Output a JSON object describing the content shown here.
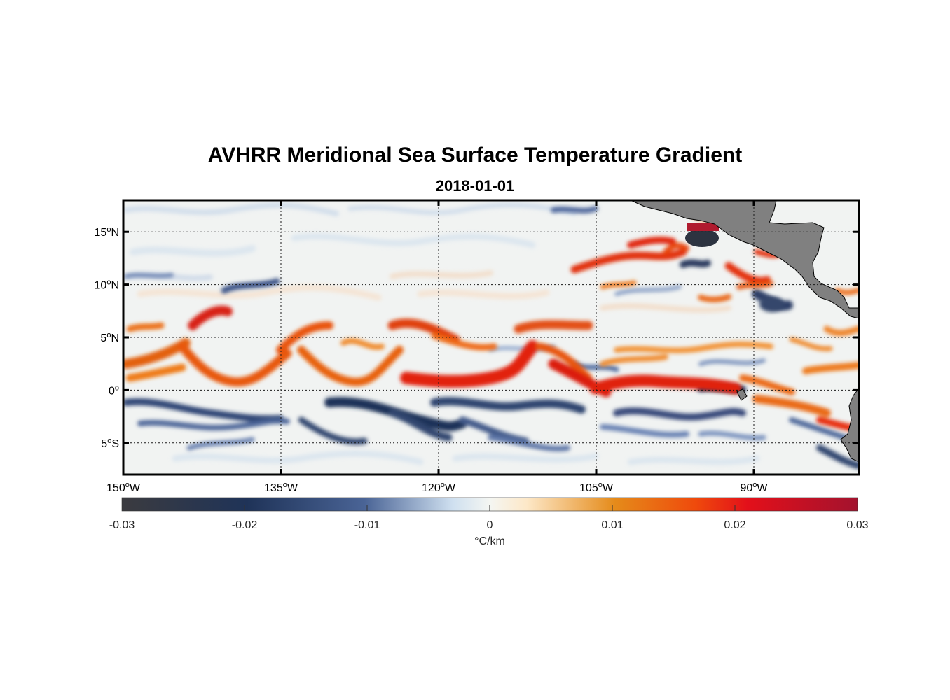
{
  "title": "AVHRR Meridional Sea Surface Temperature Gradient",
  "subtitle": "2018-01-01",
  "map": {
    "lon_range": [
      -150,
      -80
    ],
    "lat_range": [
      -8,
      18
    ],
    "lon_ticks": [
      {
        "value": -150,
        "num": "150",
        "hemi": "W"
      },
      {
        "value": -135,
        "num": "135",
        "hemi": "W"
      },
      {
        "value": -120,
        "num": "120",
        "hemi": "W"
      },
      {
        "value": -105,
        "num": "105",
        "hemi": "W"
      },
      {
        "value": -90,
        "num": "90",
        "hemi": "W"
      }
    ],
    "lat_ticks": [
      {
        "value": 15,
        "num": "15",
        "hemi": "N"
      },
      {
        "value": 10,
        "num": "10",
        "hemi": "N"
      },
      {
        "value": 5,
        "num": "5",
        "hemi": "N"
      },
      {
        "value": 0,
        "num": "0",
        "hemi": ""
      },
      {
        "value": -5,
        "num": "5",
        "hemi": "S"
      }
    ],
    "degree_symbol": "o",
    "grid": "dotted",
    "land_color": "#808080"
  },
  "colorbar": {
    "range": [
      -0.03,
      0.03
    ],
    "tick_labels": [
      "-0.03",
      "-0.02",
      "-0.01",
      "0",
      "0.01",
      "0.02",
      "0.03"
    ],
    "tick_values": [
      -0.03,
      -0.02,
      -0.01,
      0,
      0.01,
      0.02,
      0.03
    ],
    "unit_label": "°C/km",
    "colors": [
      "#3b3b3f",
      "#1f3358",
      "#4a6496",
      "#cfe0f0",
      "#f4f6f2",
      "#fde8c8",
      "#e58b1a",
      "#ef4a0c",
      "#e3101a",
      "#a3122e"
    ]
  }
}
